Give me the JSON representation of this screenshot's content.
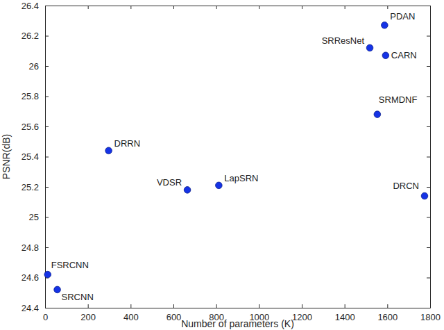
{
  "chart_data": {
    "type": "scatter",
    "x_label": "Number of parameters (K)",
    "y_label": "PSNR(dB)",
    "labels": [
      "FSRCNN",
      "SRCNN",
      "DRRN",
      "VDSR",
      "LapSRN",
      "SRResNet",
      "PDAN",
      "CARN",
      "SRMDNF",
      "DRCN"
    ],
    "x": [
      12,
      57,
      297,
      665,
      812,
      1518,
      1587,
      1592,
      1553,
      1774
    ],
    "values": [
      24.62,
      24.52,
      25.44,
      25.18,
      25.21,
      26.12,
      26.27,
      26.07,
      25.68,
      25.14
    ],
    "color": "#1533e6",
    "marker": "circle",
    "xlim": [
      0,
      1800
    ],
    "xticks": [
      0,
      200,
      400,
      600,
      800,
      1000,
      1200,
      1400,
      1600,
      1800
    ],
    "ylim": [
      24.4,
      26.4
    ],
    "yticks": [
      24.4,
      24.6,
      24.8,
      25,
      25.2,
      25.4,
      25.6,
      25.8,
      26,
      26.2,
      26.4
    ],
    "grid": false
  }
}
